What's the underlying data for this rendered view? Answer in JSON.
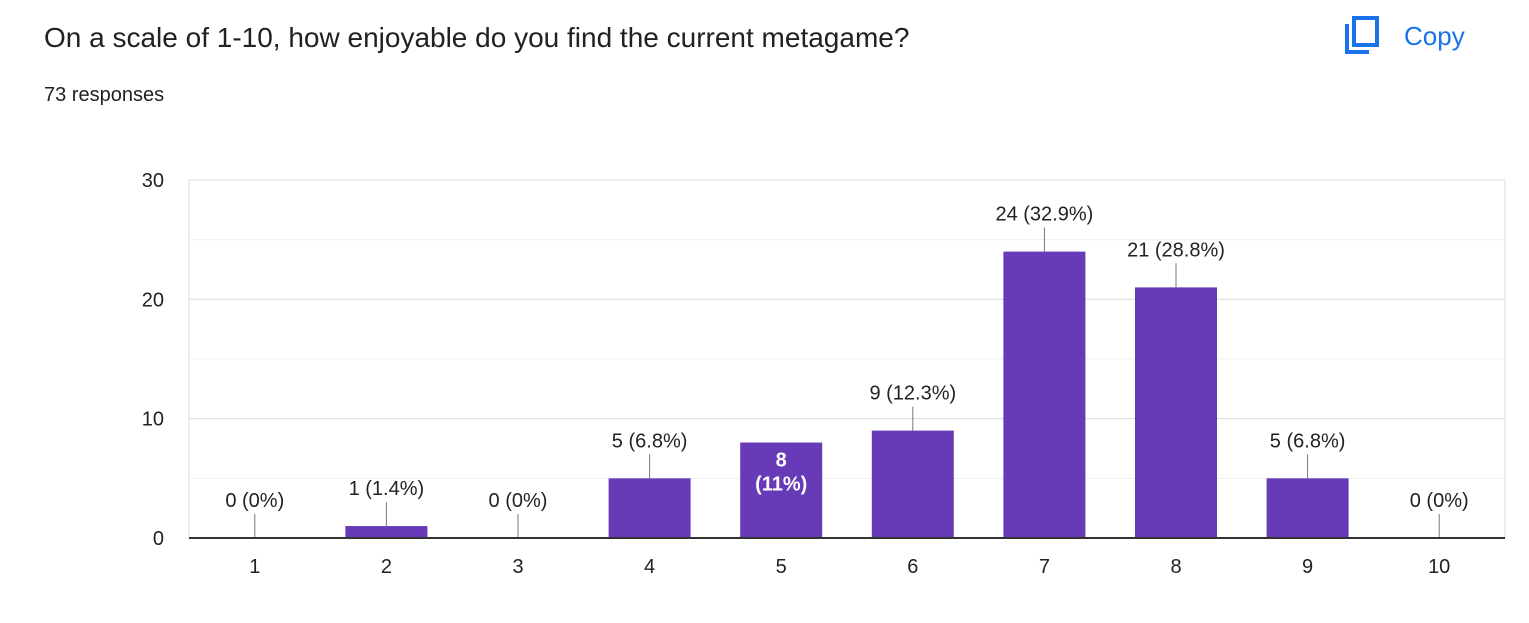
{
  "header": {
    "question": "On a scale of 1-10, how enjoyable do you find the current metagame?",
    "responses": "73 responses",
    "copy_label": "Copy",
    "copy_icon": "copy-icon"
  },
  "colors": {
    "bar": "#673ab7",
    "accent": "#1a73e8",
    "grid": "#e8e8e8",
    "axis": "#333333",
    "text": "#222222"
  },
  "chart_data": {
    "type": "bar",
    "categories": [
      "1",
      "2",
      "3",
      "4",
      "5",
      "6",
      "7",
      "8",
      "9",
      "10"
    ],
    "values": [
      0,
      1,
      0,
      5,
      8,
      9,
      24,
      21,
      5,
      0
    ],
    "data_labels": [
      "0 (0%)",
      "1 (1.4%)",
      "0 (0%)",
      "5 (6.8%)",
      "8 (11%)",
      "9 (12.3%)",
      "24 (32.9%)",
      "21 (28.8%)",
      "5 (6.8%)",
      "0 (0%)"
    ],
    "inside_label_lines": [
      [],
      [],
      [],
      [],
      [
        "8",
        "(11%)"
      ],
      [],
      [],
      [],
      [],
      []
    ],
    "ylim": [
      0,
      30
    ],
    "yticks": [
      "0",
      "10",
      "20",
      "30"
    ],
    "minor_gridlines": true,
    "grid": true,
    "legend": "none"
  }
}
